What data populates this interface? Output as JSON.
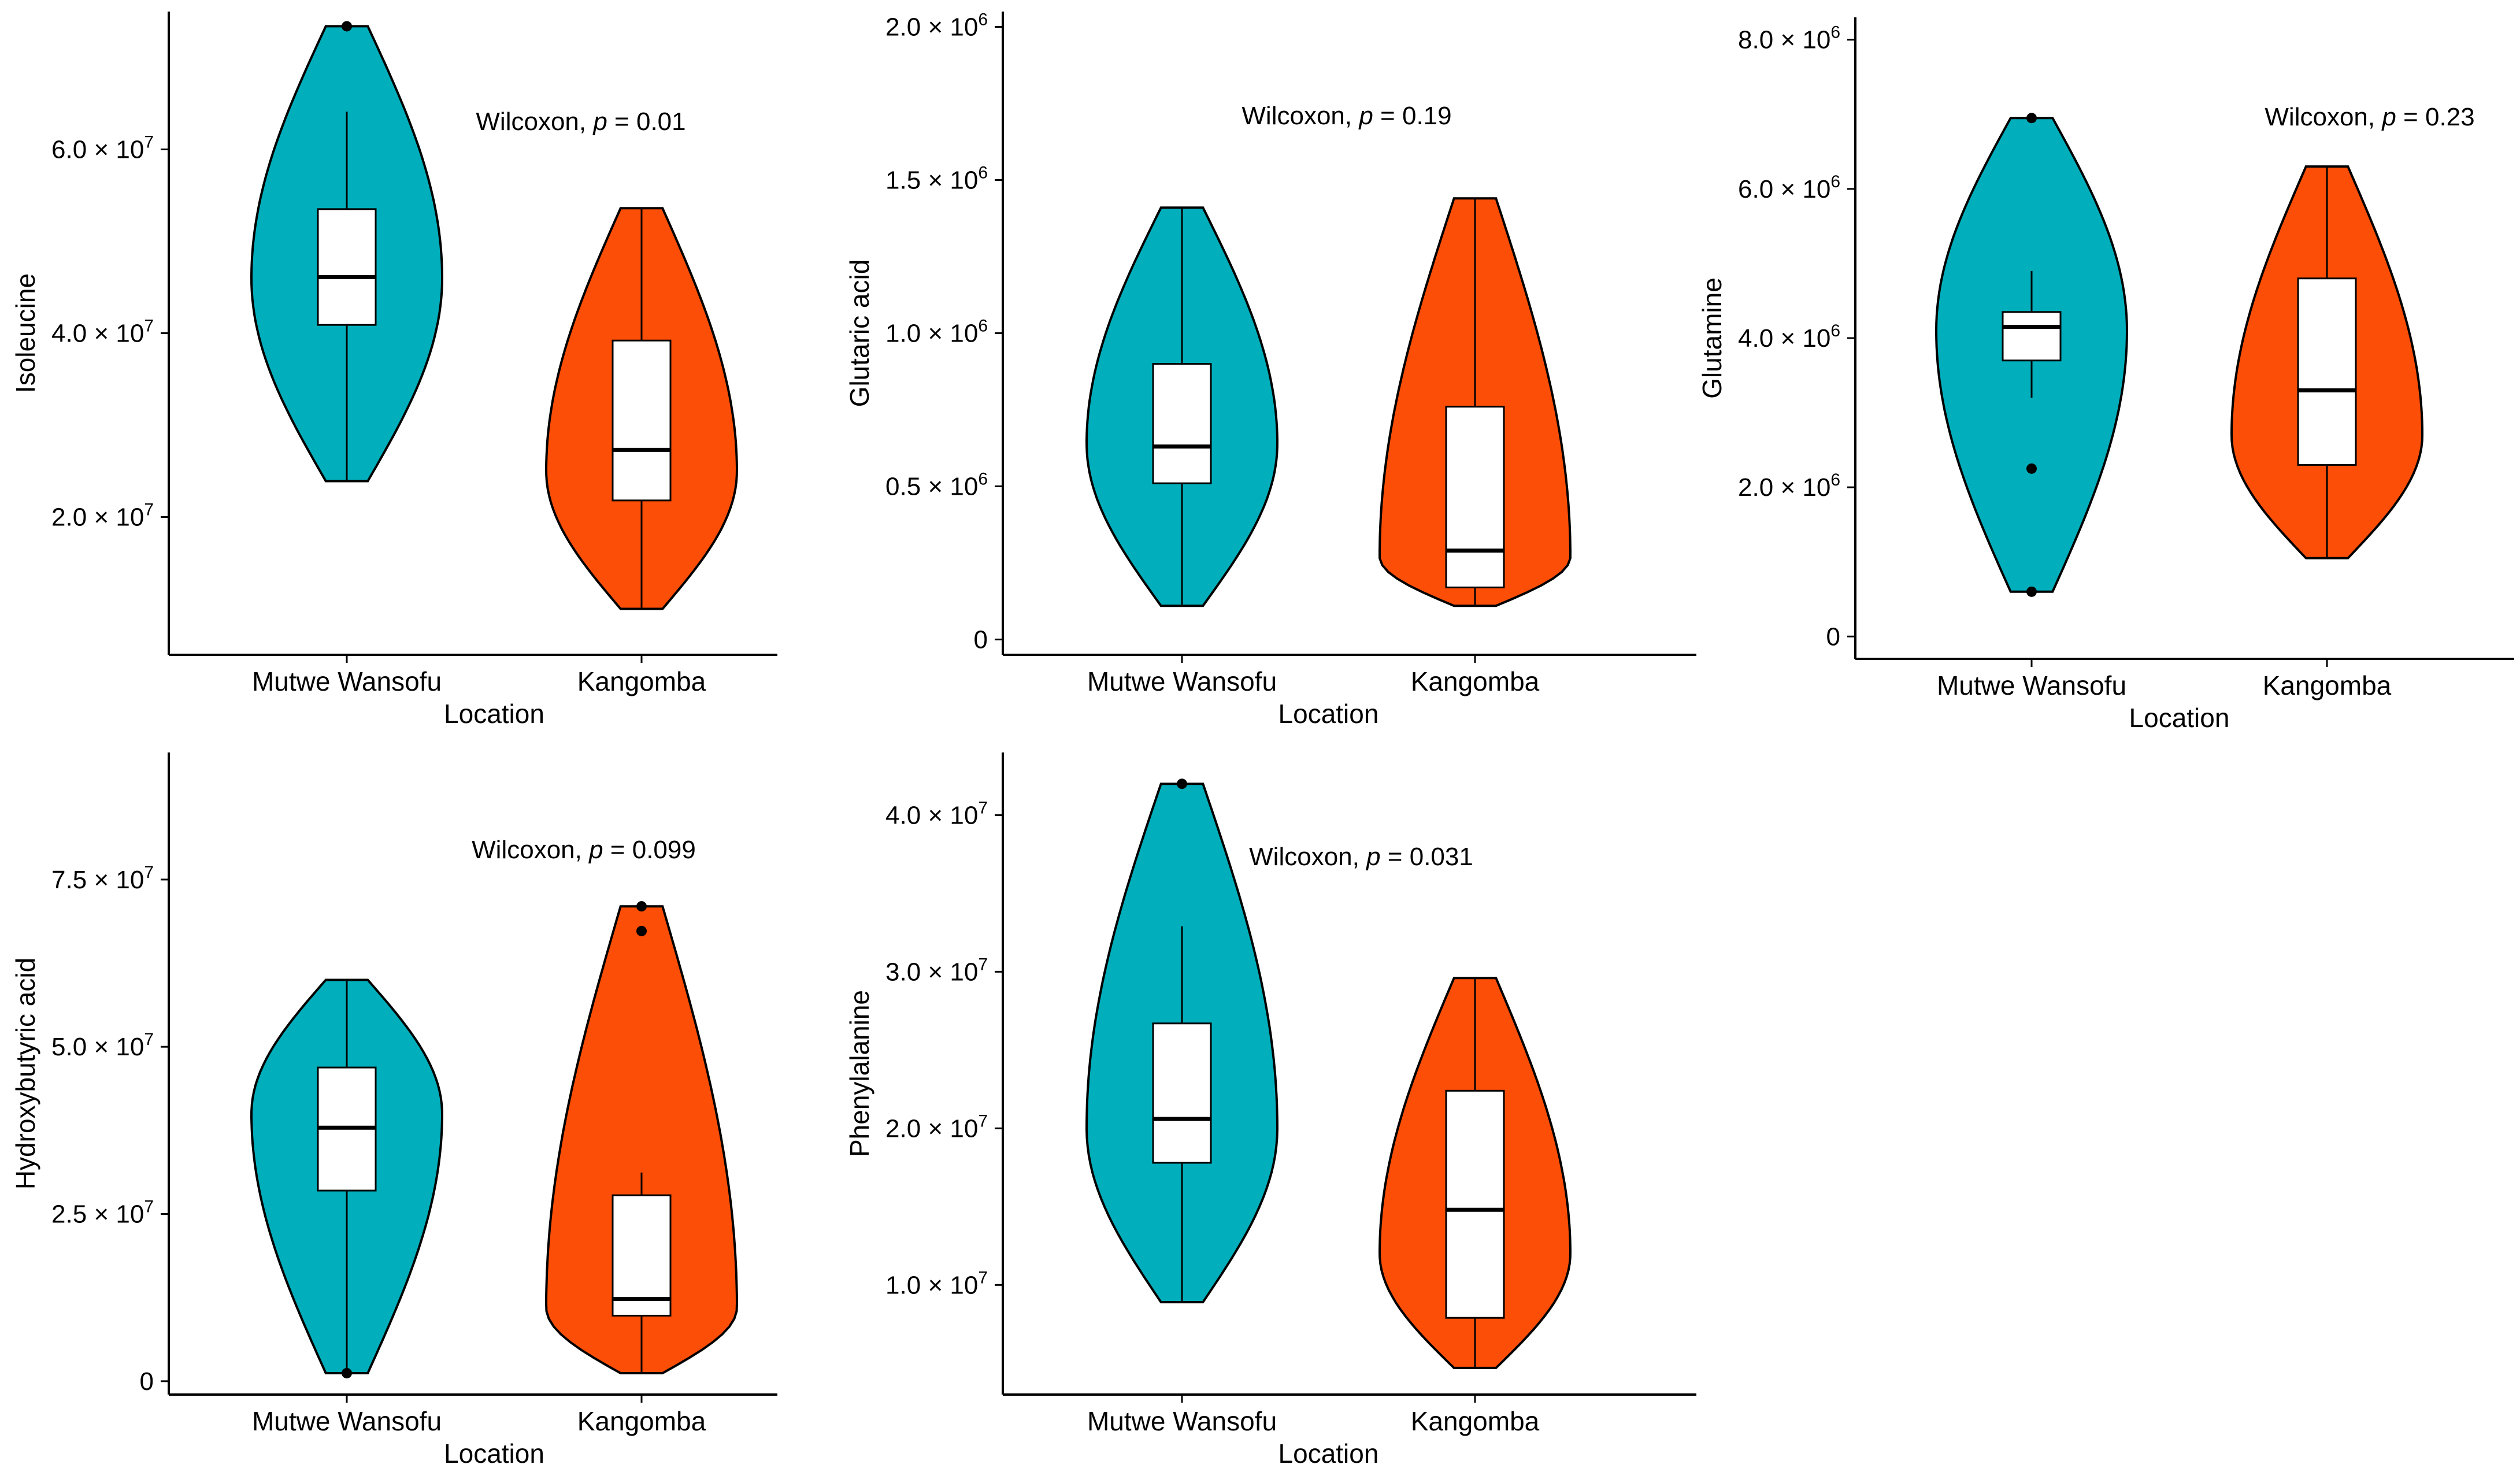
{
  "colors": {
    "Mutwe Wansofu": "#00AFBB",
    "Kangomba": "#FC4E07",
    "box_fill": "#ffffff",
    "outline": "#000000"
  },
  "chart_data": [
    {
      "type": "violin",
      "xlabel": "Location",
      "ylabel": "Isoleucine",
      "categories": [
        "Mutwe Wansofu",
        "Kangomba"
      ],
      "ylim": [
        5000000,
        75000000
      ],
      "yticks": [
        {
          "value": 20000000,
          "label": "2.0 × 10"
        },
        {
          "value": 40000000,
          "label": "4.0 × 10"
        },
        {
          "value": 60000000,
          "label": "6.0 × 10"
        }
      ],
      "ytick_exponent": "7",
      "stat_prefix": "Wilcoxon, ",
      "stat_p": "p",
      "stat_value": " = 0.01",
      "series": [
        {
          "name": "Mutwe Wansofu",
          "violin_min": 23900000,
          "violin_max": 73400000,
          "widest_at": 46000000,
          "box": {
            "whisker_low": 23900000,
            "q1": 40900000,
            "median": 46100000,
            "q3": 53500000,
            "whisker_high": 64100000
          },
          "outliers": [
            73400000
          ]
        },
        {
          "name": "Kangomba",
          "violin_min": 10000000,
          "violin_max": 53600000,
          "widest_at": 25000000,
          "box": {
            "whisker_low": 10000000,
            "q1": 21800000,
            "median": 27300000,
            "q3": 39200000,
            "whisker_high": 53600000
          },
          "outliers": []
        }
      ]
    },
    {
      "type": "violin",
      "xlabel": "Location",
      "ylabel": "Glutaric acid",
      "categories": [
        "Mutwe Wansofu",
        "Kangomba"
      ],
      "ylim": [
        -50000,
        2050000
      ],
      "yticks": [
        {
          "value": 0,
          "label": "0"
        },
        {
          "value": 500000,
          "label": "0.5 × 10"
        },
        {
          "value": 1000000,
          "label": "1.0 × 10"
        },
        {
          "value": 1500000,
          "label": "1.5 × 10"
        },
        {
          "value": 2000000,
          "label": "2.0 × 10"
        }
      ],
      "ytick_exponent": "6",
      "stat_prefix": "Wilcoxon, ",
      "stat_p": "p",
      "stat_value": " = 0.19",
      "series": [
        {
          "name": "Mutwe Wansofu",
          "violin_min": 110000,
          "violin_max": 1410000,
          "widest_at": 640000,
          "box": {
            "whisker_low": 110000,
            "q1": 510000,
            "median": 630000,
            "q3": 900000,
            "whisker_high": 1410000
          },
          "outliers": []
        },
        {
          "name": "Kangomba",
          "violin_min": 110000,
          "violin_max": 1440000,
          "widest_at": 270000,
          "box": {
            "whisker_low": 110000,
            "q1": 170000,
            "median": 290000,
            "q3": 760000,
            "whisker_high": 1440000
          },
          "outliers": []
        }
      ]
    },
    {
      "type": "violin",
      "xlabel": "Location",
      "ylabel": "Glutamine",
      "categories": [
        "Mutwe Wansofu",
        "Kangomba"
      ],
      "ylim": [
        -300000,
        8300000
      ],
      "yticks": [
        {
          "value": 0,
          "label": "0"
        },
        {
          "value": 2000000,
          "label": "2.0 × 10"
        },
        {
          "value": 4000000,
          "label": "4.0 × 10"
        },
        {
          "value": 6000000,
          "label": "6.0 × 10"
        },
        {
          "value": 8000000,
          "label": "8.0 × 10"
        }
      ],
      "ytick_exponent": "6",
      "stat_prefix": "Wilcoxon, ",
      "stat_p": "p",
      "stat_value": " = 0.23",
      "series": [
        {
          "name": "Mutwe Wansofu",
          "violin_min": 600000,
          "violin_max": 6950000,
          "widest_at": 4100000,
          "box": {
            "whisker_low": 3200000,
            "q1": 3700000,
            "median": 4150000,
            "q3": 4350000,
            "whisker_high": 4900000
          },
          "outliers": [
            6950000,
            2250000,
            600000
          ]
        },
        {
          "name": "Kangomba",
          "violin_min": 1050000,
          "violin_max": 6300000,
          "widest_at": 2700000,
          "box": {
            "whisker_low": 1050000,
            "q1": 2300000,
            "median": 3300000,
            "q3": 4800000,
            "whisker_high": 6300000
          },
          "outliers": []
        }
      ]
    },
    {
      "type": "violin",
      "xlabel": "Location",
      "ylabel": "Hydroxybutyric acid",
      "categories": [
        "Mutwe Wansofu",
        "Kangomba"
      ],
      "ylim": [
        -2000000,
        94000000
      ],
      "yticks": [
        {
          "value": 0,
          "label": "0"
        },
        {
          "value": 25000000,
          "label": "2.5 × 10"
        },
        {
          "value": 50000000,
          "label": "5.0 × 10"
        },
        {
          "value": 75000000,
          "label": "7.5 × 10"
        }
      ],
      "ytick_exponent": "7",
      "stat_prefix": "Wilcoxon, ",
      "stat_p": "p",
      "stat_value": " = 0.099",
      "series": [
        {
          "name": "Mutwe Wansofu",
          "violin_min": 1200000,
          "violin_max": 60000000,
          "widest_at": 40000000,
          "box": {
            "whisker_low": 1200000,
            "q1": 28500000,
            "median": 37900000,
            "q3": 46900000,
            "whisker_high": 60000000
          },
          "outliers": [
            1200000
          ]
        },
        {
          "name": "Kangomba",
          "violin_min": 1200000,
          "violin_max": 71000000,
          "widest_at": 11000000,
          "box": {
            "whisker_low": 1200000,
            "q1": 9800000,
            "median": 12300000,
            "q3": 27800000,
            "whisker_high": 31200000
          },
          "outliers": [
            71000000,
            67300000
          ]
        }
      ]
    },
    {
      "type": "violin",
      "xlabel": "Location",
      "ylabel": "Phenylalanine",
      "categories": [
        "Mutwe Wansofu",
        "Kangomba"
      ],
      "ylim": [
        3000000,
        44000000
      ],
      "yticks": [
        {
          "value": 10000000,
          "label": "1.0 × 10"
        },
        {
          "value": 20000000,
          "label": "2.0 × 10"
        },
        {
          "value": 30000000,
          "label": "3.0 × 10"
        },
        {
          "value": 40000000,
          "label": "4.0 × 10"
        }
      ],
      "ytick_exponent": "7",
      "stat_prefix": "Wilcoxon, ",
      "stat_p": "p",
      "stat_value": " = 0.031",
      "series": [
        {
          "name": "Mutwe Wansofu",
          "violin_min": 8900000,
          "violin_max": 42000000,
          "widest_at": 20000000,
          "box": {
            "whisker_low": 8900000,
            "q1": 17800000,
            "median": 20600000,
            "q3": 26700000,
            "whisker_high": 32900000
          },
          "outliers": [
            42000000
          ]
        },
        {
          "name": "Kangomba",
          "violin_min": 4700000,
          "violin_max": 29600000,
          "widest_at": 12000000,
          "box": {
            "whisker_low": 4700000,
            "q1": 7900000,
            "median": 14800000,
            "q3": 22400000,
            "whisker_high": 29600000
          },
          "outliers": []
        }
      ]
    }
  ]
}
